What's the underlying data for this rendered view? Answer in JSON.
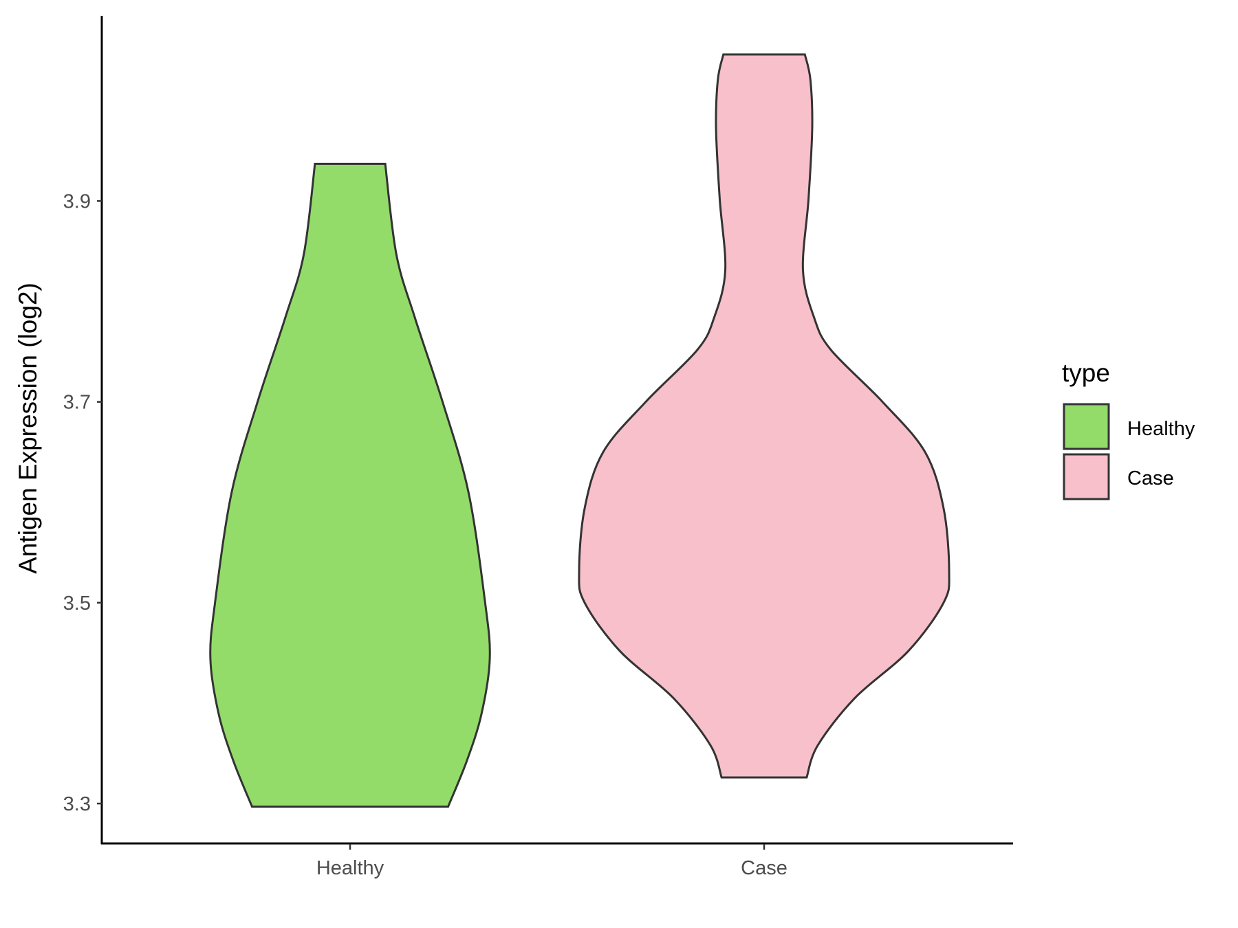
{
  "chart_data": {
    "type": "violin",
    "title": "",
    "xlabel": "",
    "ylabel": "Antigen Expression (log2)",
    "categories": [
      "Healthy",
      "Case"
    ],
    "y_ticks": [
      3.3,
      3.5,
      3.7,
      3.9
    ],
    "y_tick_labels": [
      "3.3",
      "3.5",
      "3.7",
      "3.9"
    ],
    "ylim": [
      3.26,
      4.12
    ],
    "grid": false,
    "legend": {
      "title": "type",
      "placement": "right",
      "entries": [
        "Healthy",
        "Case"
      ]
    },
    "series": [
      {
        "name": "Healthy",
        "color": "#93DC6A",
        "min": 3.297,
        "max": 3.937,
        "profile": [
          [
            3.937,
            0.19
          ],
          [
            3.847,
            0.25
          ],
          [
            3.784,
            0.35
          ],
          [
            3.7,
            0.5
          ],
          [
            3.61,
            0.64
          ],
          [
            3.5,
            0.73
          ],
          [
            3.444,
            0.755
          ],
          [
            3.389,
            0.71
          ],
          [
            3.342,
            0.63
          ],
          [
            3.297,
            0.53
          ]
        ]
      },
      {
        "name": "Case",
        "color": "#F7C0CB",
        "min": 3.326,
        "max": 4.046,
        "profile": [
          [
            4.046,
            0.22
          ],
          [
            4.021,
            0.25
          ],
          [
            3.973,
            0.26
          ],
          [
            3.902,
            0.24
          ],
          [
            3.831,
            0.21
          ],
          [
            3.784,
            0.27
          ],
          [
            3.752,
            0.36
          ],
          [
            3.7,
            0.64
          ],
          [
            3.65,
            0.87
          ],
          [
            3.594,
            0.97
          ],
          [
            3.531,
            1.0
          ],
          [
            3.5,
            0.97
          ],
          [
            3.452,
            0.78
          ],
          [
            3.405,
            0.49
          ],
          [
            3.358,
            0.29
          ],
          [
            3.326,
            0.23
          ]
        ]
      }
    ]
  }
}
